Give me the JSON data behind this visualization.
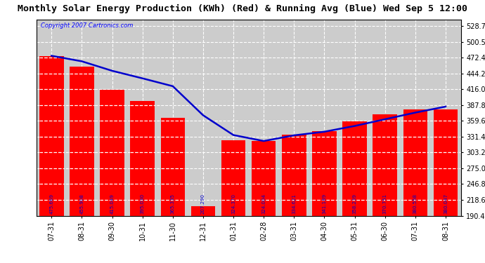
{
  "categories": [
    "07-31",
    "08-31",
    "09-30",
    "10-31",
    "11-30",
    "12-31",
    "01-31",
    "02-28",
    "03-31",
    "04-30",
    "05-31",
    "06-30",
    "07-31",
    "08-31"
  ],
  "bar_values": [
    475.669,
    455.908,
    415.049,
    395.03,
    365.335,
    207.29,
    324.37,
    324.004,
    334.621,
    341.189,
    358.239,
    370.751,
    380.558,
    380.047
  ],
  "running_avg": [
    475.669,
    465.788,
    448.875,
    435.414,
    421.398,
    369.547,
    334.232,
    323.603,
    333.697,
    340.187,
    350.43,
    362.419,
    374.274,
    385.0
  ],
  "bar_color": "#ff0000",
  "line_color": "#0000cc",
  "title": "Monthly Solar Energy Production (KWh) (Red) & Running Avg (Blue) Wed Sep 5 12:00",
  "copyright_text": "Copyright 2007 Cartronics.com",
  "ylim_min": 190.4,
  "ylim_max": 540.0,
  "ytick_values": [
    190.4,
    218.6,
    246.8,
    275.0,
    303.2,
    331.4,
    359.6,
    387.8,
    416.0,
    444.2,
    472.4,
    500.5,
    528.7
  ],
  "bg_color": "#ffffff",
  "plot_bg_color": "#cccccc",
  "grid_color": "#ffffff",
  "title_fontsize": 9.5,
  "tick_fontsize": 7,
  "value_label_fontsize": 5.0
}
